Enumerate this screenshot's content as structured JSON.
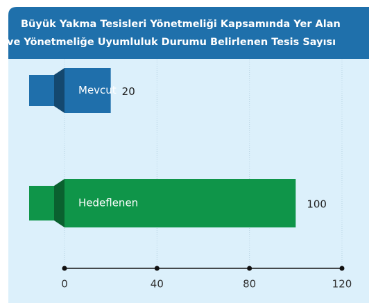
{
  "chart_data": {
    "type": "bar",
    "title": [
      "Büyük Yakma Tesisleri Yönetmeliği Kapsamında Yer Alan",
      "ve Yönetmeliğe Uyumluluk Durumu Belirlenen Tesis Sayısı"
    ],
    "categories": [
      "Mevcut",
      "Hedeflenen"
    ],
    "values": [
      20,
      100
    ],
    "colors": [
      "#1f6fab",
      "#0f9549"
    ],
    "xlim": [
      0,
      120
    ],
    "xticks": [
      0,
      40,
      80,
      120
    ],
    "grid": true
  }
}
